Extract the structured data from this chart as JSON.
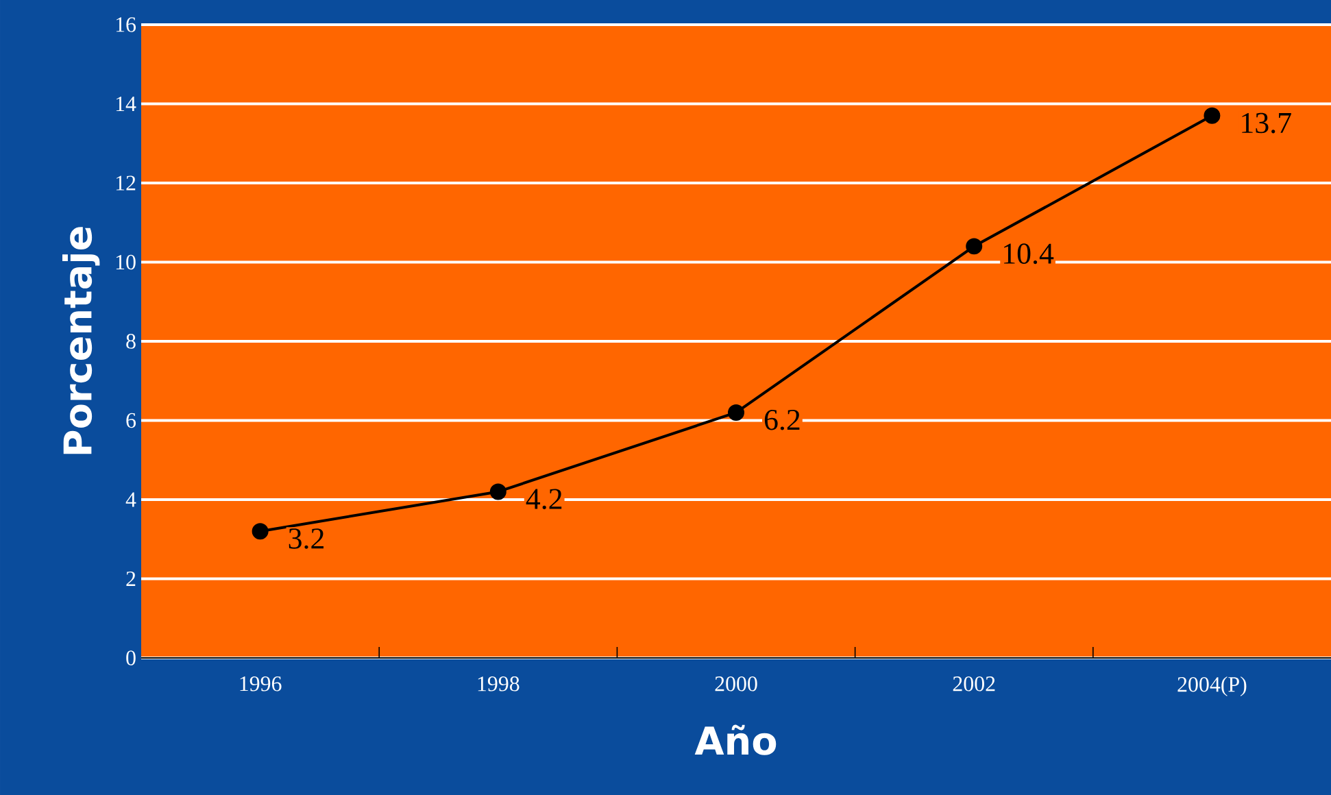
{
  "chart_data": {
    "type": "line",
    "xlabel": "Año",
    "ylabel": "Porcentaje",
    "categories": [
      "1996",
      "1998",
      "2000",
      "2002",
      "2004(P)"
    ],
    "series": [
      {
        "color": "#000000",
        "values": [
          3.2,
          4.2,
          6.2,
          10.4,
          13.7
        ]
      }
    ],
    "ylim": [
      0,
      16
    ],
    "yticks": [
      0,
      2,
      4,
      6,
      8,
      10,
      12,
      14,
      16
    ],
    "grid": "y",
    "marker": "circle",
    "line_style": "solid",
    "data_labels": true
  }
}
